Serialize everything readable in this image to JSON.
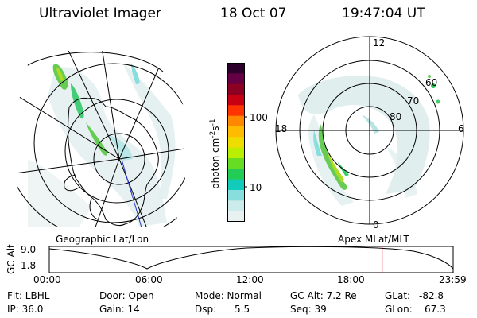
{
  "header": {
    "instrument": "Ultraviolet Imager",
    "date": "18 Oct 07",
    "time": "19:47:04 UT"
  },
  "colorbar": {
    "unit": "photon cm",
    "exp1": "-2",
    "unit2": "s",
    "exp2": "-1",
    "tick_100": "100",
    "tick_10": "10",
    "colors": [
      "#2b002b",
      "#660044",
      "#8c0022",
      "#c80014",
      "#ff3300",
      "#ff8800",
      "#ffbb00",
      "#eedd00",
      "#bbee00",
      "#66dd22",
      "#22cc55",
      "#11ccbb",
      "#88dddd",
      "#ccebeb",
      "#e8f0f0"
    ]
  },
  "left_map": {
    "caption": "Geographic Lat/Lon"
  },
  "right_dial": {
    "caption": "Apex MLat/MLT",
    "mlt_labels": [
      "12",
      "18",
      "6",
      "0"
    ],
    "lat_labels": [
      "60",
      "70",
      "80"
    ]
  },
  "timeline": {
    "axis_label": "GC Alt",
    "y_ticks": [
      "9.0",
      "1.8"
    ],
    "x_ticks": [
      "00:00",
      "06:00",
      "12:00",
      "18:00",
      "23:59"
    ],
    "current_time_marker_fraction": 0.8242,
    "marker_color": "#dd0000"
  },
  "status": {
    "filter": "Flt: LBHL",
    "ip": "IP: 36.0",
    "door": "Door: Open",
    "gain": "Gain: 14",
    "mode": "Mode: Normal",
    "dsp_label": "Dsp:",
    "dsp_value": "5.5",
    "gc_alt": "GC Alt: 7.2 Re",
    "seq": "Seq: 39",
    "glat_label": "GLat:",
    "glat_value": "-82.8",
    "glon_label": "GLon:",
    "glon_value": "67.3"
  }
}
